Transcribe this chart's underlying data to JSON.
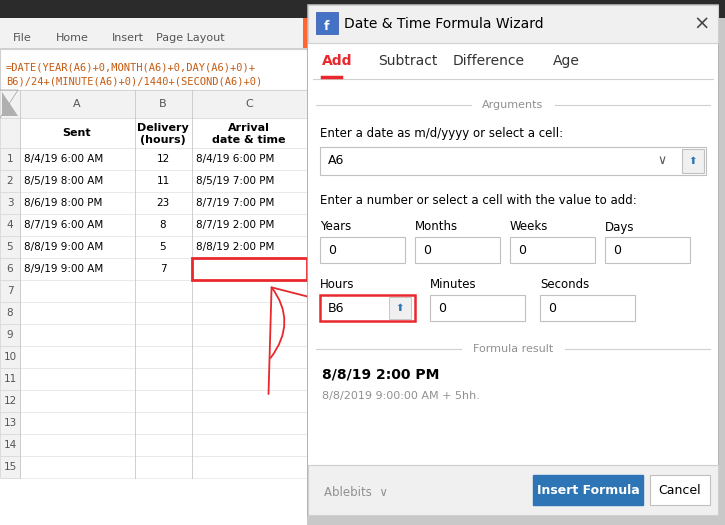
{
  "bg_color": "#c8c8c8",
  "dialog_title": "Date & Time Formula Wizard",
  "tabs": [
    "Add",
    "Subtract",
    "Difference",
    "Age"
  ],
  "active_tab": "Add",
  "tab_active_color": "#e8282d",
  "arguments_label": "Arguments",
  "date_label": "Enter a date as m/d/yyyy or select a cell:",
  "date_field": "A6",
  "value_label": "Enter a number or select a cell with the value to add:",
  "field_labels_row1": [
    "Years",
    "Months",
    "Weeks",
    "Days"
  ],
  "field_values_row1": [
    "0",
    "0",
    "0",
    "0"
  ],
  "field_labels_row2": [
    "Hours",
    "Minutes",
    "Seconds"
  ],
  "field_values_row2": [
    "B6",
    "0",
    "0"
  ],
  "hours_field_red": true,
  "formula_result_label": "Formula result",
  "formula_result_line1": "8/8/19 2:00 PM",
  "formula_result_line2": "8/8/2019 9:00:00 AM + 5hh.",
  "ablebits_label": "Ablebits ∨",
  "insert_btn": "Insert Formula",
  "cancel_btn": "Cancel",
  "insert_btn_color": "#2e75b6",
  "menu_items": [
    "File",
    "Home",
    "Insert",
    "Page Layout"
  ],
  "formula_line1": "=DATE(YEAR(A6)+0,MONTH(A6)+0,DAY(A6)+0)+",
  "formula_line2": "B6)/24+(MINUTE(A6)+0)/1440+(SECOND(A6)+0)",
  "col_headers": [
    "A",
    "B",
    "C"
  ],
  "row_headers": [
    "1",
    "2",
    "3",
    "4",
    "5",
    "6",
    "7",
    "8",
    "9",
    "10",
    "11",
    "12",
    "13",
    "14",
    "15"
  ],
  "col_a_data": [
    "8/4/19 6:00 AM",
    "8/5/19 8:00 AM",
    "8/6/19 8:00 PM",
    "8/7/19 6:00 AM",
    "8/8/19 9:00 AM",
    "8/9/19 9:00 AM"
  ],
  "col_b_data": [
    "12",
    "11",
    "23",
    "8",
    "5",
    "7"
  ],
  "col_c_data": [
    "8/4/19 6:00 PM",
    "8/5/19 7:00 PM",
    "8/7/19 7:00 PM",
    "8/7/19 2:00 PM",
    "8/8/19 2:00 PM",
    ""
  ]
}
